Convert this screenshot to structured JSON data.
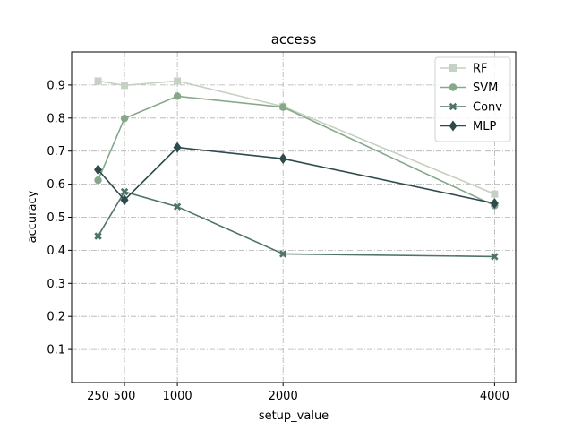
{
  "chart_data": {
    "type": "line",
    "title": "access",
    "xlabel": "setup_value",
    "ylabel": "accuracy",
    "x": [
      250,
      500,
      1000,
      2000,
      4000
    ],
    "x_tick_labels": [
      "250",
      "500",
      "1000",
      "2000",
      "4000"
    ],
    "xlim": [
      0,
      4200
    ],
    "ylim": [
      0,
      1.0
    ],
    "y_ticks": [
      0.1,
      0.2,
      0.3,
      0.4,
      0.5,
      0.6,
      0.7,
      0.8,
      0.9
    ],
    "y_tick_labels": [
      "0.1",
      "0.2",
      "0.3",
      "0.4",
      "0.5",
      "0.6",
      "0.7",
      "0.8",
      "0.9"
    ],
    "grid": true,
    "legend_position": "top-right",
    "series": [
      {
        "name": "RF",
        "values": [
          0.912,
          0.899,
          0.912,
          0.835,
          0.57
        ],
        "color": "#c5d1c2",
        "marker": "square"
      },
      {
        "name": "SVM",
        "values": [
          0.612,
          0.799,
          0.866,
          0.833,
          0.535
        ],
        "color": "#85a88a",
        "marker": "circle"
      },
      {
        "name": "Conv",
        "values": [
          0.443,
          0.577,
          0.532,
          0.389,
          0.381
        ],
        "color": "#4d7468",
        "marker": "x"
      },
      {
        "name": "MLP",
        "values": [
          0.644,
          0.552,
          0.711,
          0.677,
          0.542
        ],
        "color": "#2e4a4d",
        "marker": "diamond"
      }
    ]
  }
}
